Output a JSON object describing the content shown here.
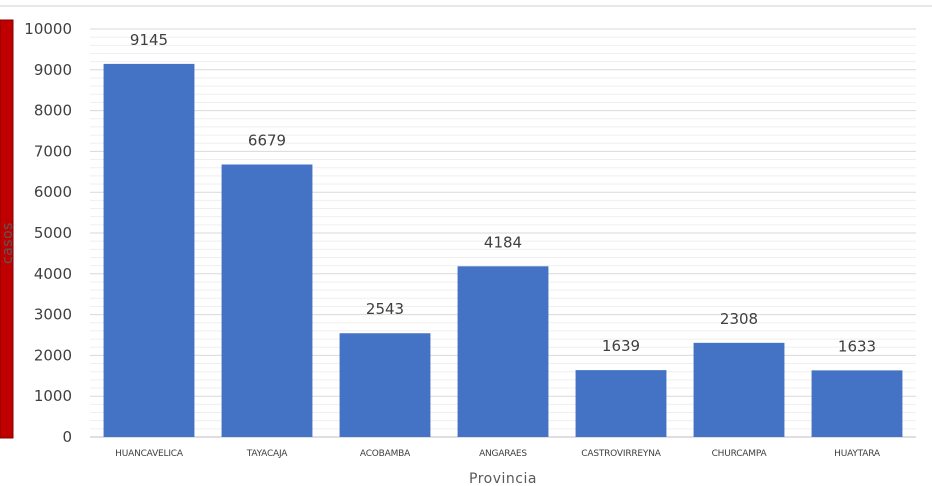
{
  "chart_data": {
    "type": "bar",
    "title": "",
    "xlabel": "Provincia",
    "ylabel": "casos",
    "categories": [
      "HUANCAVELICA",
      "TAYACAJA",
      "ACOBAMBA",
      "ANGARAES",
      "CASTROVIRREYNA",
      "CHURCAMPA",
      "HUAYTARA"
    ],
    "values": [
      9145,
      6679,
      2543,
      4184,
      1639,
      2308,
      1633
    ],
    "ylim": [
      0,
      10000
    ],
    "yticks": [
      0,
      1000,
      2000,
      3000,
      4000,
      5000,
      6000,
      7000,
      8000,
      9000,
      10000
    ],
    "data_labels": [
      "9145",
      "6679",
      "2543",
      "4184",
      "1639",
      "2308",
      "1633"
    ],
    "grid": true,
    "minor_grid": true,
    "legend": "none",
    "bar_color": "#4472C4",
    "grid_color": "#D9D9D9",
    "left_panel_color": "#C00000"
  }
}
